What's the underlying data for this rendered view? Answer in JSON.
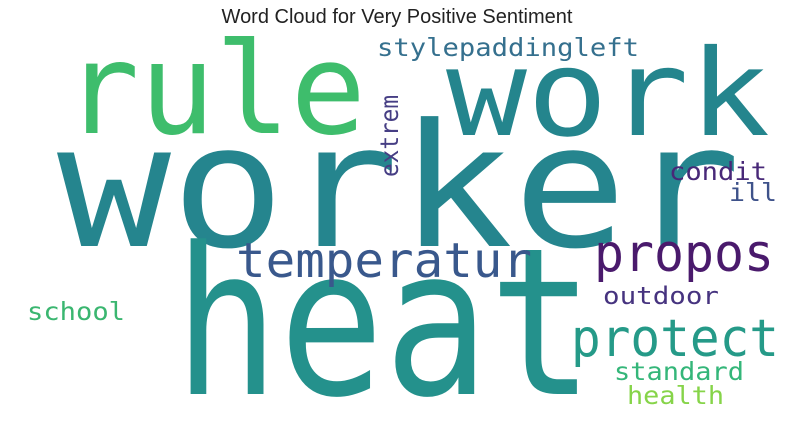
{
  "title": "Word Cloud for Very Positive Sentiment",
  "words": [
    {
      "text": "worker",
      "color": "#25858e"
    },
    {
      "text": "heat",
      "color": "#24918c"
    },
    {
      "text": "rule",
      "color": "#3ebd6c"
    },
    {
      "text": "work",
      "color": "#24858d"
    },
    {
      "text": "stylepaddingleft",
      "color": "#35708e"
    },
    {
      "text": "temperatur",
      "color": "#39588c"
    },
    {
      "text": "propos",
      "color": "#4a1a6c"
    },
    {
      "text": "protect",
      "color": "#259a88"
    },
    {
      "text": "extrem",
      "color": "#463e84"
    },
    {
      "text": "condit",
      "color": "#482878"
    },
    {
      "text": "ill",
      "color": "#3e528a"
    },
    {
      "text": "outdoor",
      "color": "#46337f"
    },
    {
      "text": "school",
      "color": "#3ab670"
    },
    {
      "text": "standard",
      "color": "#34b679"
    },
    {
      "text": "health",
      "color": "#86d449"
    }
  ]
}
